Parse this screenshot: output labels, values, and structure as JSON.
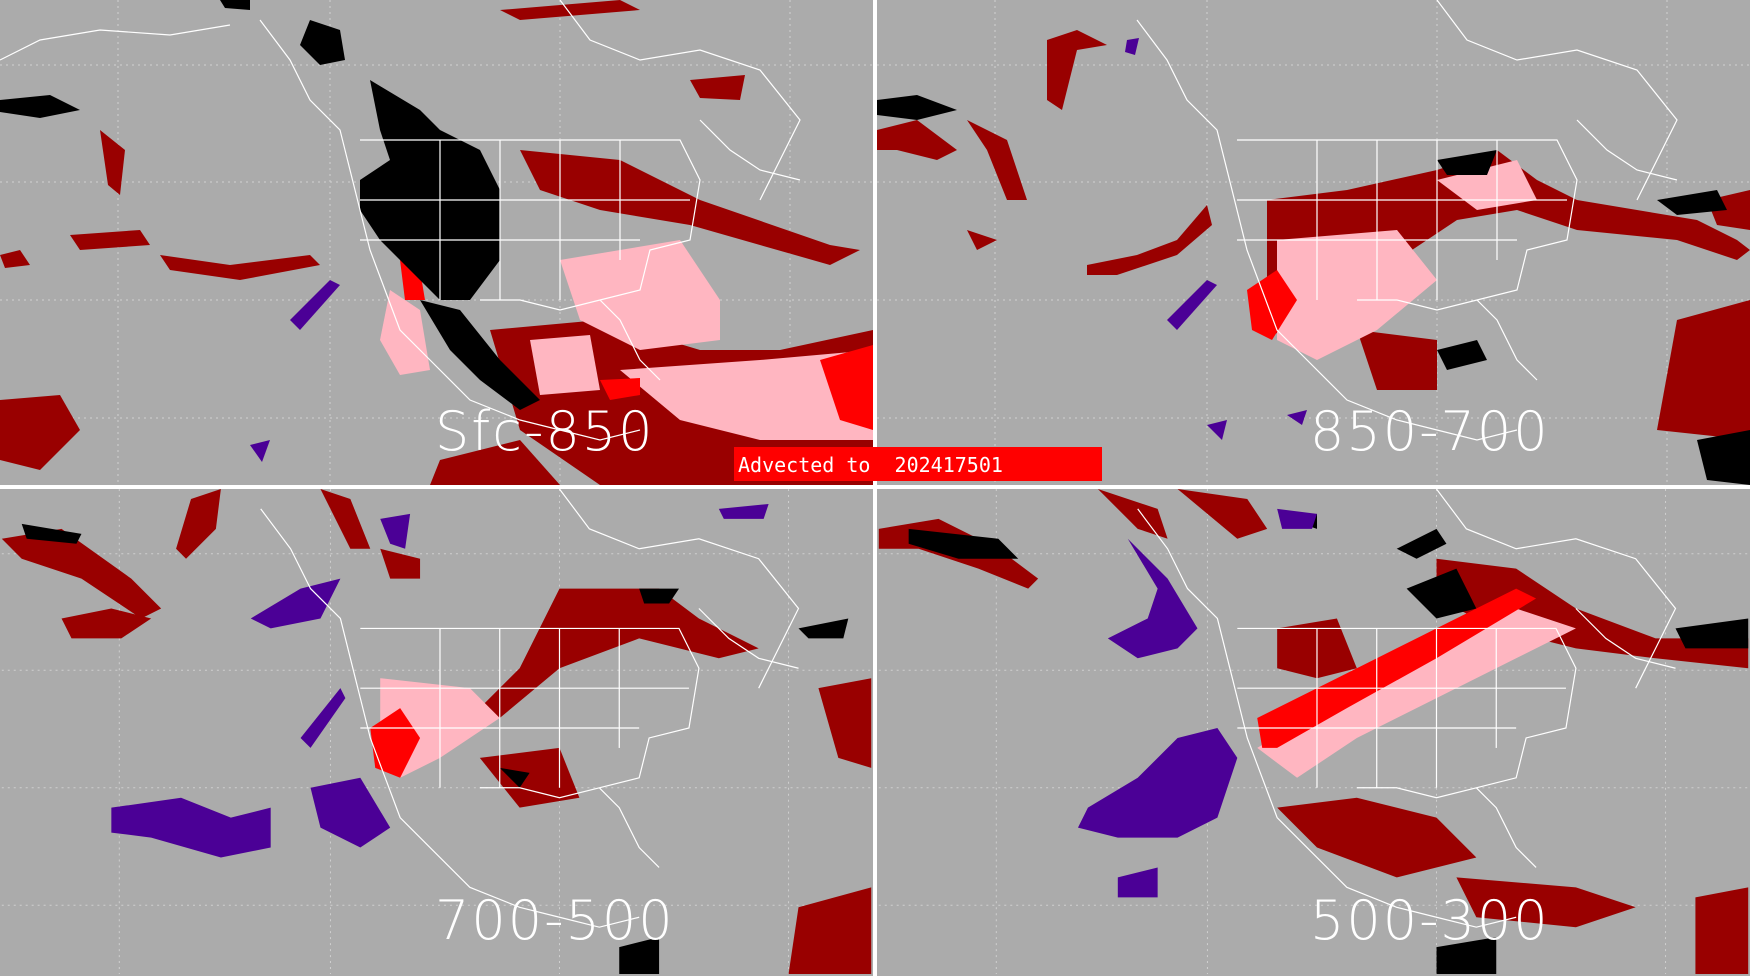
{
  "panels": [
    {
      "id": "p1",
      "label": "Sfc-850"
    },
    {
      "id": "p2",
      "label": "850-700"
    },
    {
      "id": "p3",
      "label": "700-500"
    },
    {
      "id": "p4",
      "label": "500-300"
    }
  ],
  "banner": {
    "text": "Advected to  202417501"
  },
  "colors": {
    "background": "#ababab",
    "dark_red": "#990000",
    "red": "#ff0000",
    "pink": "#ffb6c1",
    "black": "#000000",
    "purple": "#4b0096",
    "borders": "#ffffff",
    "grid": "#d0d0d0"
  }
}
